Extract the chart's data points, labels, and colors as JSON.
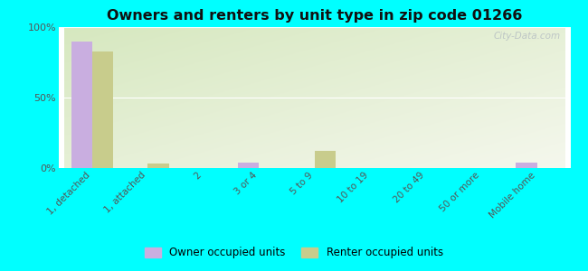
{
  "title": "Owners and renters by unit type in zip code 01266",
  "categories": [
    "1, detached",
    "1, attached",
    "2",
    "3 or 4",
    "5 to 9",
    "10 to 19",
    "20 to 49",
    "50 or more",
    "Mobile home"
  ],
  "owner_values": [
    90,
    0,
    0,
    4,
    0,
    0,
    0,
    0,
    4
  ],
  "renter_values": [
    83,
    3,
    0,
    0,
    12,
    0,
    0,
    0,
    0
  ],
  "owner_color": "#c9aee0",
  "renter_color": "#c8cc8c",
  "background_color": "#00ffff",
  "ylim": [
    0,
    100
  ],
  "yticks": [
    0,
    50,
    100
  ],
  "ytick_labels": [
    "0%",
    "50%",
    "100%"
  ],
  "bar_width": 0.38,
  "legend_owner": "Owner occupied units",
  "legend_renter": "Renter occupied units",
  "watermark": "City-Data.com"
}
